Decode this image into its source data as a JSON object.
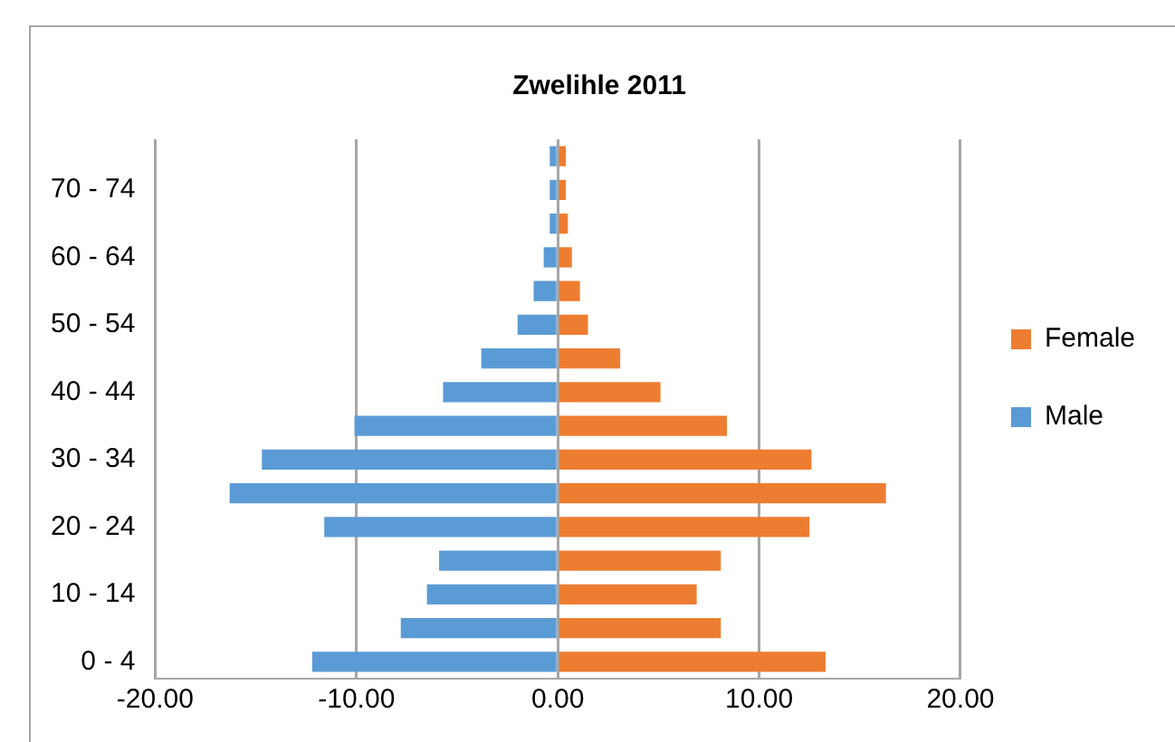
{
  "chart_data": {
    "type": "bar",
    "orientation": "horizontal",
    "stacked": true,
    "title": "Zwelihle 2011",
    "categories": [
      null,
      "70 - 74",
      null,
      "60 - 64",
      null,
      "50 - 54",
      null,
      "40 - 44",
      null,
      "30 - 34",
      null,
      "20 - 24",
      null,
      "10 - 14",
      null,
      "0 - 4"
    ],
    "series": [
      {
        "name": "Female",
        "color": "#ed7d31",
        "values": [
          0.4,
          0.4,
          0.5,
          0.7,
          1.1,
          1.5,
          3.1,
          5.1,
          8.4,
          12.6,
          16.3,
          12.5,
          8.1,
          6.9,
          8.1,
          13.3
        ]
      },
      {
        "name": "Male",
        "color": "#5b9bd5",
        "values": [
          -0.4,
          -0.4,
          -0.4,
          -0.7,
          -1.2,
          -2.0,
          -3.8,
          -5.7,
          -10.1,
          -14.7,
          -16.3,
          -11.6,
          -5.9,
          -6.5,
          -7.8,
          -12.2
        ]
      }
    ],
    "xlim": [
      -20,
      20
    ],
    "xticks": [
      {
        "value": -20,
        "label": "-20.00"
      },
      {
        "value": -10,
        "label": "-10.00"
      },
      {
        "value": 0,
        "label": "0.00"
      },
      {
        "value": 10,
        "label": "10.00"
      },
      {
        "value": 20,
        "label": "20.00"
      }
    ],
    "grid": "x",
    "legend": "right"
  }
}
